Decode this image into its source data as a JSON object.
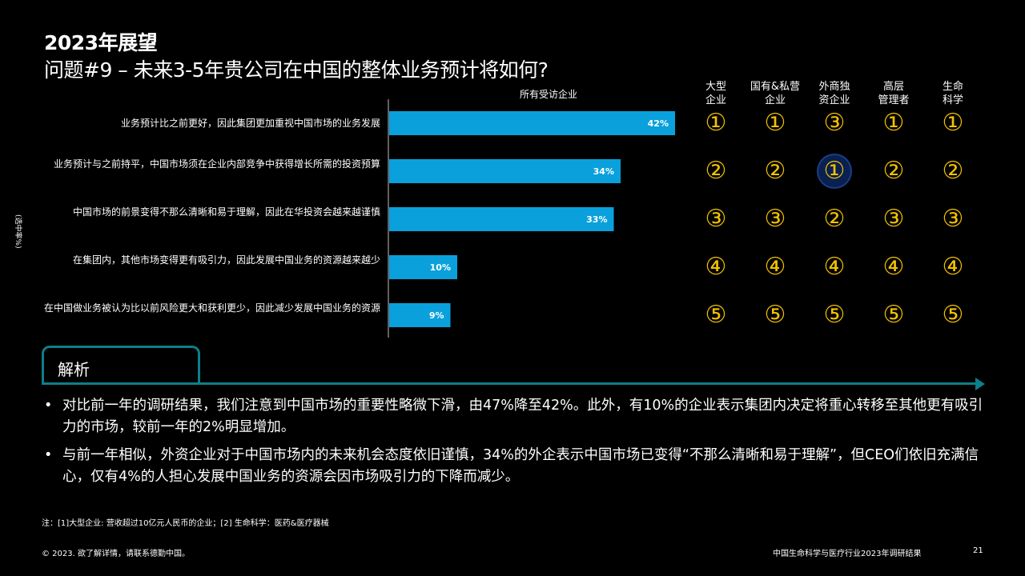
{
  "title": "2023年展望",
  "subtitle": "问题#9 – 未来3-5年贵公司在中国的整体业务预计将如何?",
  "ylabel": "(选中率%)",
  "chart_data": {
    "type": "bar",
    "orientation": "horizontal",
    "title": "所有受访企业",
    "categories": [
      "业务预计比之前更好，因此集团更加重视中国市场的业务发展",
      "业务预计与之前持平，中国市场须在企业内部竞争中获得增长所需的投资预算",
      "中国市场的前景变得不那么清晰和易于理解，因此在华投资会越来越谨慎",
      "在集团内，其他市场变得更有吸引力，因此发展中国业务的资源越来越少",
      "在中国做业务被认为比以前风险更大和获利更少，因此减少发展中国业务的资源"
    ],
    "values": [
      42,
      34,
      33,
      10,
      9
    ],
    "labels": [
      "42%",
      "34%",
      "33%",
      "10%",
      "9%"
    ],
    "ylabel": "(选中率%)",
    "xlim": [
      0,
      42
    ],
    "bar_color": "#0aa0dc",
    "grid": false
  },
  "rank_table": {
    "columns": [
      "大型企业",
      "国有&私营企业",
      "外商独资企业",
      "高层管理者",
      "生命科学"
    ],
    "column_lines": [
      [
        "大型",
        "企业"
      ],
      [
        "国有&私营",
        "企业"
      ],
      [
        "外商独",
        "资企业"
      ],
      [
        "高层",
        "管理者"
      ],
      [
        "生命",
        "科学"
      ]
    ],
    "ranks": [
      [
        "①",
        "①",
        "③",
        "①",
        "①"
      ],
      [
        "②",
        "②",
        "①",
        "②",
        "②"
      ],
      [
        "③",
        "③",
        "②",
        "③",
        "③"
      ],
      [
        "④",
        "④",
        "④",
        "④",
        "④"
      ],
      [
        "⑤",
        "⑤",
        "⑤",
        "⑤",
        "⑤"
      ]
    ],
    "highlight": {
      "row": 1,
      "col": 2,
      "color": "#0a2050"
    },
    "rank_color": "#f2c200"
  },
  "analysis": {
    "tab_label": "解析",
    "bullets": [
      "对比前一年的调研结果，我们注意到中国市场的重要性略微下滑，由47%降至42%。此外，有10%的企业表示集团内决定将重心转移至其他更有吸引力的市场，较前一年的2%明显增加。",
      "与前一年相似，外资企业对于中国市场内的未来机会态度依旧谨慎，34%的外企表示中国市场已变得“不那么清晰和易于理解”，但CEO们依旧充满信心，仅有4%的人担心发展中国业务的资源会因市场吸引力的下降而减少。"
    ],
    "accent_color": "#0c7f8a"
  },
  "note": "注：[1]大型企业: 营收超过10亿元人民币的企业；[2] 生命科学：医药&医疗器械",
  "footer": {
    "copyright": "© 2023. 欲了解详情，请联系德勤中国。",
    "report": "中国生命科学与医疗行业2023年调研结果",
    "page": "21"
  }
}
